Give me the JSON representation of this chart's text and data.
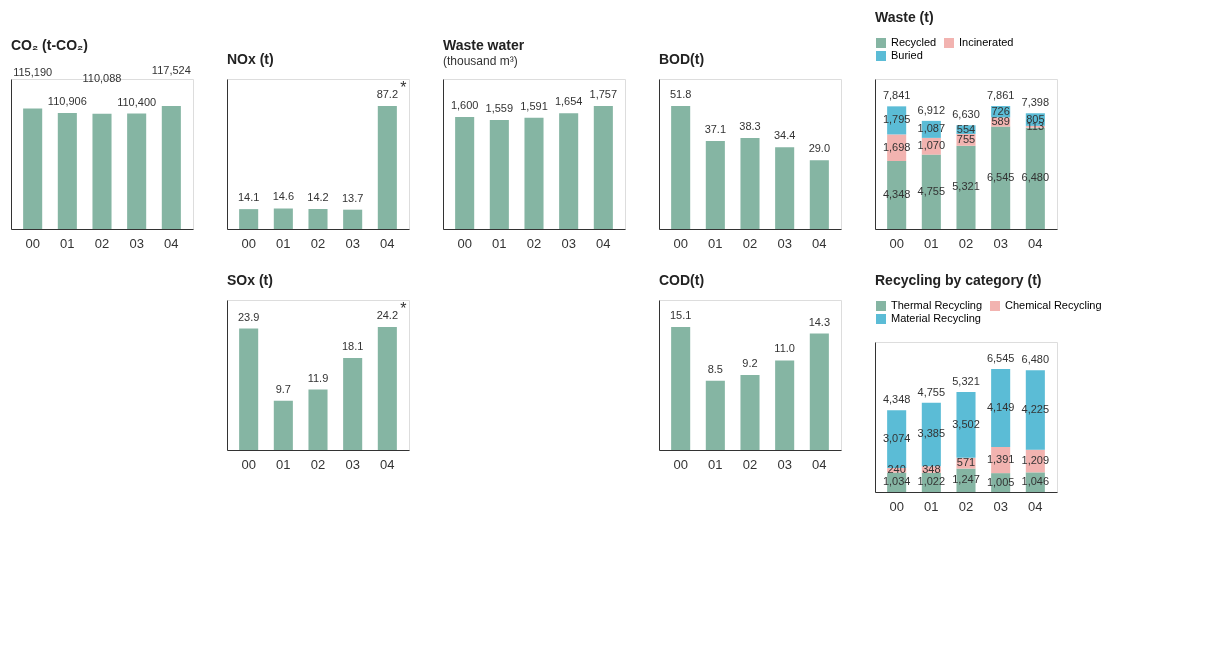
{
  "chart_data": [
    {
      "type": "bar",
      "title": "CO₂ (t-CO₂)",
      "categories": [
        "00",
        "01",
        "02",
        "03",
        "04"
      ],
      "values": [
        115190,
        110906,
        110088,
        110400,
        117524
      ],
      "value_labels": [
        "115,190",
        "110,906",
        "110,088",
        "110,400",
        "117,524"
      ],
      "color": "#85b5a3",
      "tick_labels": "x"
    },
    {
      "type": "bar",
      "title": "NOx (t)",
      "categories": [
        "00",
        "01",
        "02",
        "03",
        "04"
      ],
      "values": [
        14.1,
        14.6,
        14.2,
        13.7,
        87.2
      ],
      "value_labels": [
        "14.1",
        "14.6",
        "14.2",
        "13.7",
        "87.2"
      ],
      "color": "#85b5a3",
      "tick_labels": "x",
      "annotations": [
        {
          "text": "*",
          "x": "04",
          "y": 87.2
        }
      ]
    },
    {
      "type": "bar",
      "title": "SOx (t)",
      "categories": [
        "00",
        "01",
        "02",
        "03",
        "04"
      ],
      "values": [
        23.9,
        9.7,
        11.9,
        18.1,
        24.2
      ],
      "value_labels": [
        "23.9",
        "9.7",
        "11.9",
        "18.1",
        "24.2"
      ],
      "color": "#85b5a3",
      "tick_labels": "x",
      "annotations": [
        {
          "text": "*",
          "x": "04",
          "y": 24.2
        }
      ]
    },
    {
      "type": "bar",
      "title": "Waste water",
      "subtitle": "(thousand m³)",
      "categories": [
        "00",
        "01",
        "02",
        "03",
        "04"
      ],
      "values": [
        1600,
        1559,
        1591,
        1654,
        1757
      ],
      "value_labels": [
        "1,600",
        "1,559",
        "1,591",
        "1,654",
        "1,757"
      ],
      "color": "#85b5a3",
      "tick_labels": "x"
    },
    {
      "type": "bar",
      "title": "BOD(t)",
      "categories": [
        "00",
        "01",
        "02",
        "03",
        "04"
      ],
      "values": [
        51.8,
        37.1,
        38.3,
        34.4,
        29.0
      ],
      "value_labels": [
        "51.8",
        "37.1",
        "38.3",
        "34.4",
        "29.0"
      ],
      "color": "#85b5a3",
      "tick_labels": "x"
    },
    {
      "type": "bar",
      "title": "COD(t)",
      "categories": [
        "00",
        "01",
        "02",
        "03",
        "04"
      ],
      "values": [
        15.1,
        8.5,
        9.2,
        11.0,
        14.3
      ],
      "value_labels": [
        "15.1",
        "8.5",
        "9.2",
        "11.0",
        "14.3"
      ],
      "color": "#85b5a3",
      "tick_labels": "x"
    },
    {
      "type": "bar",
      "title": "Waste (t)",
      "stacked": true,
      "legend": "top",
      "categories": [
        "00",
        "01",
        "02",
        "03",
        "04"
      ],
      "tick_labels": "x",
      "totals": [
        "7,841",
        "6,912",
        "6,630",
        "7,861",
        "7,398"
      ],
      "series": [
        {
          "name": "Recycled",
          "color": "#85b5a3",
          "values": [
            4348,
            4755,
            5321,
            6545,
            6480
          ],
          "value_labels": [
            "4,348",
            "4,755",
            "5,321",
            "6,545",
            "6,480"
          ]
        },
        {
          "name": "Incinerated",
          "color": "#f2b3b0",
          "values": [
            1698,
            1070,
            755,
            589,
            113
          ],
          "value_labels": [
            "1,698",
            "1,070",
            "755",
            "589",
            "113"
          ]
        },
        {
          "name": "Buried",
          "color": "#5bbcd6",
          "values": [
            1795,
            1087,
            554,
            726,
            805
          ],
          "value_labels": [
            "1,795",
            "1,087",
            "554",
            "726",
            "805"
          ]
        }
      ]
    },
    {
      "type": "bar",
      "title": "Recycling by category (t)",
      "stacked": true,
      "legend": "top",
      "categories": [
        "00",
        "01",
        "02",
        "03",
        "04"
      ],
      "tick_labels": "x",
      "totals": [
        "4,348",
        "4,755",
        "5,321",
        "6,545",
        "6,480"
      ],
      "series": [
        {
          "name": "Thermal Recycling",
          "color": "#85b5a3",
          "values": [
            1034,
            1022,
            1247,
            1005,
            1046
          ],
          "value_labels": [
            "1,034",
            "1,022",
            "1,247",
            "1,005",
            "1,046"
          ]
        },
        {
          "name": "Chemical Recycling",
          "color": "#f2b3b0",
          "values": [
            240,
            348,
            571,
            1391,
            1209
          ],
          "value_labels": [
            "240",
            "348",
            "571",
            "1,391",
            "1,209"
          ]
        },
        {
          "name": "Material Recycling",
          "color": "#5bbcd6",
          "values": [
            3074,
            3385,
            3502,
            4149,
            4225
          ],
          "value_labels": [
            "3,074",
            "3,385",
            "3,502",
            "4,149",
            "4,225"
          ]
        }
      ]
    }
  ]
}
